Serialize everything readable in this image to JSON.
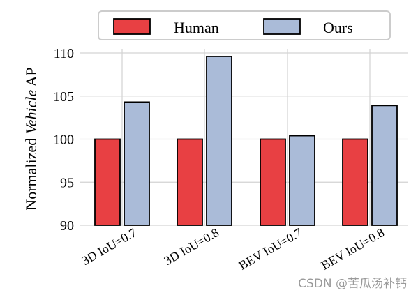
{
  "chart_data": {
    "type": "bar",
    "ylabel_prefix": "Normalized ",
    "ylabel_italic": "Vehicle",
    "ylabel_suffix": " AP",
    "ylim": [
      90,
      110
    ],
    "yticks": [
      "90",
      "95",
      "100",
      "105",
      "110"
    ],
    "categories": [
      "3D IoU=0.7",
      "3D IoU=0.8",
      "BEV IoU=0.7",
      "BEV IoU=0.8"
    ],
    "series": [
      {
        "name": "Human",
        "values": [
          100,
          100,
          100,
          100
        ]
      },
      {
        "name": "Ours",
        "values": [
          104.3,
          109.6,
          100.4,
          103.9
        ]
      }
    ],
    "colors": {
      "Human": "#e84043",
      "Ours": "#aabbd8"
    },
    "grid": true,
    "legend": "top"
  },
  "watermark": "CSDN @苦瓜汤补钙"
}
